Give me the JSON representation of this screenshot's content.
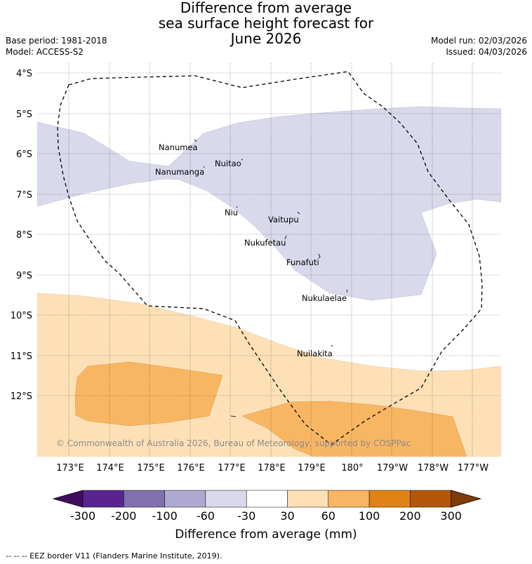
{
  "title": {
    "line1": "Difference from average",
    "line2": "sea surface height forecast for",
    "line3": "June 2026"
  },
  "meta_left": {
    "base_period": "Base period: 1981-2018",
    "model": "Model: ACCESS-S2"
  },
  "meta_right": {
    "model_run": "Model run: 02/03/2026",
    "issued": "Issued: 04/03/2026"
  },
  "map": {
    "latitude_labels": [
      "4°S",
      "5°S",
      "6°S",
      "7°S",
      "8°S",
      "9°S",
      "10°S",
      "11°S",
      "12°S"
    ],
    "longitude_labels": [
      "173°E",
      "174°E",
      "175°E",
      "176°E",
      "177°E",
      "178°E",
      "179°E",
      "180°",
      "179°W",
      "178°W",
      "177°W"
    ],
    "places": [
      {
        "name": "Nanumea"
      },
      {
        "name": "Nuitao"
      },
      {
        "name": "Nanumanga"
      },
      {
        "name": "Niu"
      },
      {
        "name": "Vaitupu"
      },
      {
        "name": "Nukufetau"
      },
      {
        "name": "Funafuti"
      },
      {
        "name": "Nukulaelae"
      },
      {
        "name": "Nuilakita"
      }
    ],
    "copyright": "© Commonwealth of Australia 2026, Bureau of Meteorology, supported by COSPPac",
    "colors": {
      "band_-60_-30": "#d8d9ea",
      "band_30_60": "#fde0b6",
      "band_60_100": "#f9b662"
    }
  },
  "colorbar": {
    "ticks": [
      "-300",
      "-200",
      "-100",
      "-60",
      "-30",
      "30",
      "60",
      "100",
      "200",
      "300"
    ],
    "colors": [
      "#3f0d5e",
      "#5a2490",
      "#8071ae",
      "#afa9d1",
      "#d8d9ea",
      "#ffffff",
      "#fde0b6",
      "#f9b662",
      "#e08314",
      "#b35808",
      "#7f3b08"
    ],
    "title": "Difference from average (mm)"
  },
  "footer": {
    "legend_text": "--  --  -- EEZ border V11 (Flanders Marine Institute, 2019)."
  }
}
